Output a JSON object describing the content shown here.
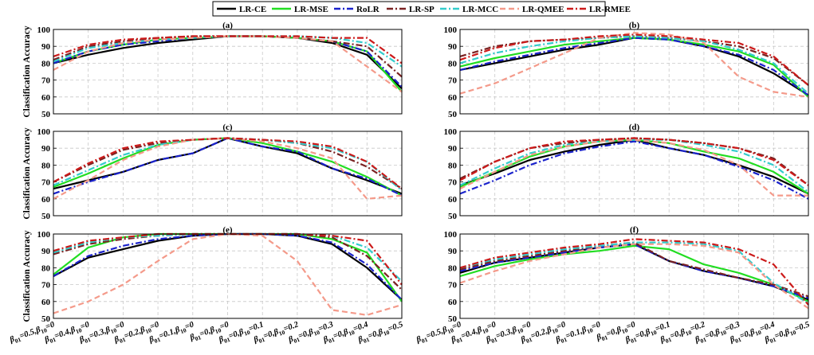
{
  "figure": {
    "ylabel": "Classification Accuracy",
    "legend_placement": "top-center",
    "x_tick_labels": [
      "β01=0.5,β10=0",
      "β01=0.4,β10=0",
      "β01=0.3,β10=0",
      "β01=0.2,β10=0",
      "β01=0.1,β10=0",
      "β01=0,β10=0",
      "β01=0,β10=0.1",
      "β01=0,β10=0.2",
      "β01=0,β10=0.3",
      "β01=0,β10=0.4",
      "β01=0,β10=0.5"
    ],
    "y_ticks": [
      50,
      60,
      70,
      80,
      90,
      100
    ],
    "series_styles": [
      {
        "name": "LR-CE",
        "color": "#000000",
        "dash": "solid"
      },
      {
        "name": "LR-MSE",
        "color": "#22dd22",
        "dash": "solid"
      },
      {
        "name": "RoLR",
        "color": "#1a22cc",
        "dash": "dashdot"
      },
      {
        "name": "LR-SP",
        "color": "#7a2222",
        "dash": "dashdot"
      },
      {
        "name": "LR-MCC",
        "color": "#33cccc",
        "dash": "dashdot"
      },
      {
        "name": "LR-QMEE",
        "color": "#f49a8a",
        "dash": "dash"
      },
      {
        "name": "LR-RMEE",
        "color": "#cc1a1a",
        "dash": "dashdot"
      }
    ]
  },
  "chart_data": [
    {
      "type": "line",
      "title": "(a)",
      "xlabel": "",
      "ylabel": "Classification Accuracy",
      "ylim": [
        50,
        100
      ],
      "grid": true,
      "x": [
        -0.5,
        -0.4,
        -0.3,
        -0.2,
        -0.1,
        0,
        0.1,
        0.2,
        0.3,
        0.4,
        0.5
      ],
      "series": [
        {
          "name": "LR-CE",
          "values": [
            80,
            85,
            89,
            92,
            94,
            96,
            96,
            95,
            92,
            85,
            65
          ]
        },
        {
          "name": "LR-MSE",
          "values": [
            80,
            87,
            91,
            94,
            95,
            96,
            96,
            95,
            93,
            87,
            63
          ]
        },
        {
          "name": "RoLR",
          "values": [
            80,
            87,
            91,
            93,
            95,
            96,
            96,
            95,
            93,
            87,
            66
          ]
        },
        {
          "name": "LR-SP",
          "values": [
            82,
            90,
            93,
            95,
            96,
            96,
            96,
            95,
            93,
            90,
            72
          ]
        },
        {
          "name": "LR-MCC",
          "values": [
            81,
            89,
            92,
            94,
            95,
            96,
            96,
            96,
            95,
            92,
            78
          ]
        },
        {
          "name": "LR-QMEE",
          "values": [
            76,
            87,
            92,
            94,
            95,
            96,
            96,
            95,
            93,
            78,
            63
          ]
        },
        {
          "name": "LR-RMEE",
          "values": [
            84,
            91,
            94,
            95,
            96,
            96,
            96,
            96,
            95,
            95,
            80
          ]
        }
      ]
    },
    {
      "type": "line",
      "title": "(b)",
      "xlabel": "",
      "ylabel": "",
      "ylim": [
        50,
        100
      ],
      "grid": true,
      "x": [
        -0.5,
        -0.4,
        -0.3,
        -0.2,
        -0.1,
        0,
        0.1,
        0.2,
        0.3,
        0.4,
        0.5
      ],
      "series": [
        {
          "name": "LR-CE",
          "values": [
            76,
            80,
            84,
            88,
            91,
            95,
            94,
            90,
            84,
            74,
            61
          ]
        },
        {
          "name": "LR-MSE",
          "values": [
            78,
            83,
            87,
            91,
            93,
            95,
            94,
            91,
            87,
            79,
            60
          ]
        },
        {
          "name": "RoLR",
          "values": [
            76,
            81,
            85,
            89,
            92,
            95,
            94,
            90,
            85,
            76,
            61
          ]
        },
        {
          "name": "LR-SP",
          "values": [
            84,
            90,
            93,
            94,
            95,
            96,
            95,
            93,
            90,
            83,
            67
          ]
        },
        {
          "name": "LR-MCC",
          "values": [
            80,
            86,
            90,
            93,
            95,
            96,
            95,
            93,
            88,
            80,
            62
          ]
        },
        {
          "name": "LR-QMEE",
          "values": [
            62,
            68,
            77,
            86,
            95,
            98,
            97,
            92,
            72,
            63,
            60
          ]
        },
        {
          "name": "LR-RMEE",
          "values": [
            82,
            89,
            93,
            94,
            96,
            97,
            96,
            94,
            92,
            84,
            67
          ]
        }
      ]
    },
    {
      "type": "line",
      "title": "(c)",
      "xlabel": "",
      "ylabel": "Classification Accuracy",
      "ylim": [
        50,
        100
      ],
      "grid": true,
      "x": [
        -0.5,
        -0.4,
        -0.3,
        -0.2,
        -0.1,
        0,
        0.1,
        0.2,
        0.3,
        0.4,
        0.5
      ],
      "series": [
        {
          "name": "LR-CE",
          "values": [
            66,
            71,
            76,
            83,
            87,
            96,
            91,
            87,
            78,
            71,
            63
          ]
        },
        {
          "name": "LR-MSE",
          "values": [
            67,
            75,
            84,
            92,
            95,
            96,
            93,
            88,
            82,
            73,
            62
          ]
        },
        {
          "name": "RoLR",
          "values": [
            63,
            70,
            76,
            83,
            87,
            96,
            91,
            88,
            78,
            72,
            62
          ]
        },
        {
          "name": "LR-SP",
          "values": [
            70,
            80,
            89,
            93,
            95,
            96,
            95,
            93,
            88,
            79,
            66
          ]
        },
        {
          "name": "LR-MCC",
          "values": [
            68,
            77,
            86,
            92,
            95,
            96,
            95,
            93,
            90,
            82,
            65
          ]
        },
        {
          "name": "LR-QMEE",
          "values": [
            60,
            71,
            83,
            91,
            95,
            96,
            94,
            90,
            84,
            60,
            62
          ]
        },
        {
          "name": "LR-RMEE",
          "values": [
            70,
            81,
            90,
            94,
            95,
            96,
            95,
            94,
            91,
            82,
            66
          ]
        }
      ]
    },
    {
      "type": "line",
      "title": "(d)",
      "xlabel": "",
      "ylabel": "",
      "ylim": [
        50,
        100
      ],
      "grid": true,
      "x": [
        -0.5,
        -0.4,
        -0.3,
        -0.2,
        -0.1,
        0,
        0.1,
        0.2,
        0.3,
        0.4,
        0.5
      ],
      "series": [
        {
          "name": "LR-CE",
          "values": [
            68,
            75,
            83,
            88,
            92,
            95,
            90,
            86,
            80,
            73,
            63
          ]
        },
        {
          "name": "LR-MSE",
          "values": [
            67,
            76,
            85,
            91,
            94,
            95,
            93,
            88,
            84,
            76,
            63
          ]
        },
        {
          "name": "RoLR",
          "values": [
            63,
            71,
            80,
            87,
            91,
            94,
            90,
            86,
            79,
            71,
            60
          ]
        },
        {
          "name": "LR-SP",
          "values": [
            72,
            82,
            90,
            93,
            95,
            96,
            95,
            93,
            90,
            84,
            68
          ]
        },
        {
          "name": "LR-MCC",
          "values": [
            68,
            78,
            87,
            92,
            94,
            95,
            95,
            92,
            88,
            80,
            64
          ]
        },
        {
          "name": "LR-QMEE",
          "values": [
            66,
            76,
            86,
            91,
            94,
            95,
            93,
            89,
            80,
            62,
            62
          ]
        },
        {
          "name": "LR-RMEE",
          "values": [
            71,
            82,
            90,
            94,
            95,
            96,
            95,
            93,
            90,
            83,
            68
          ]
        }
      ]
    },
    {
      "type": "line",
      "title": "(e)",
      "xlabel": "",
      "ylabel": "Classification Accuracy",
      "ylim": [
        50,
        100
      ],
      "grid": true,
      "x": [
        -0.5,
        -0.4,
        -0.3,
        -0.2,
        -0.1,
        0,
        0.1,
        0.2,
        0.3,
        0.4,
        0.5
      ],
      "series": [
        {
          "name": "LR-CE",
          "values": [
            75,
            86,
            91,
            96,
            99,
            100,
            100,
            99,
            94,
            80,
            61
          ]
        },
        {
          "name": "LR-MSE",
          "values": [
            76,
            92,
            98,
            100,
            100,
            100,
            100,
            100,
            97,
            89,
            60
          ]
        },
        {
          "name": "RoLR",
          "values": [
            75,
            87,
            93,
            97,
            99,
            100,
            100,
            99,
            95,
            82,
            61
          ]
        },
        {
          "name": "LR-SP",
          "values": [
            88,
            94,
            97,
            99,
            100,
            100,
            100,
            100,
            98,
            87,
            67
          ]
        },
        {
          "name": "LR-MCC",
          "values": [
            89,
            95,
            98,
            99,
            100,
            100,
            100,
            100,
            99,
            92,
            72
          ]
        },
        {
          "name": "LR-QMEE",
          "values": [
            53,
            60,
            70,
            84,
            97,
            100,
            99,
            84,
            55,
            52,
            58
          ]
        },
        {
          "name": "LR-RMEE",
          "values": [
            90,
            96,
            98,
            100,
            100,
            100,
            100,
            100,
            99,
            96,
            70
          ]
        }
      ]
    },
    {
      "type": "line",
      "title": "(f)",
      "xlabel": "",
      "ylabel": "",
      "ylim": [
        50,
        100
      ],
      "grid": true,
      "x": [
        -0.5,
        -0.4,
        -0.3,
        -0.2,
        -0.1,
        0,
        0.1,
        0.2,
        0.3,
        0.4,
        0.5
      ],
      "series": [
        {
          "name": "LR-CE",
          "values": [
            77,
            83,
            86,
            89,
            92,
            94,
            84,
            78,
            74,
            69,
            61
          ]
        },
        {
          "name": "LR-MSE",
          "values": [
            75,
            81,
            85,
            88,
            90,
            93,
            91,
            82,
            77,
            70,
            60
          ]
        },
        {
          "name": "RoLR",
          "values": [
            78,
            83,
            86,
            89,
            92,
            94,
            84,
            78,
            74,
            69,
            62
          ]
        },
        {
          "name": "LR-SP",
          "values": [
            79,
            84,
            87,
            90,
            93,
            95,
            84,
            79,
            74,
            70,
            63
          ]
        },
        {
          "name": "LR-MCC",
          "values": [
            80,
            85,
            88,
            91,
            93,
            95,
            95,
            94,
            90,
            71,
            59
          ]
        },
        {
          "name": "LR-QMEE",
          "values": [
            71,
            78,
            84,
            88,
            92,
            94,
            94,
            93,
            89,
            70,
            56
          ]
        },
        {
          "name": "LR-RMEE",
          "values": [
            80,
            86,
            89,
            92,
            94,
            97,
            96,
            95,
            91,
            82,
            58
          ]
        }
      ]
    }
  ]
}
